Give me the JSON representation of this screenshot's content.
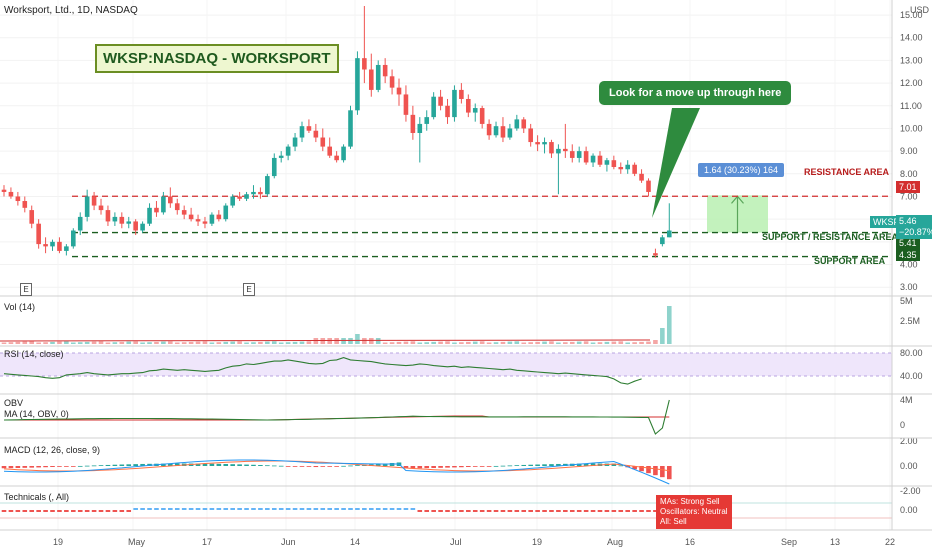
{
  "header": {
    "title": "Worksport, Ltd., 1D, NASDAQ",
    "banner": "WKSP:NASDAQ - WORKSPORT"
  },
  "annotations": {
    "callout": "Look for a move up through here",
    "measure": "1.64 (30.23%) 164",
    "resistance_label": "RESISTANCE AREA",
    "support_resistance_label": "SUPPORT / RESISTANCE AREA",
    "support_label": "SUPPORT AREA"
  },
  "price_tags": {
    "resistance": "7.01",
    "support_resistance": "5.41",
    "support": "4.35",
    "last_price": "5.46",
    "last_change": "−20.87%",
    "symbol": "WKSP",
    "currency": "USD"
  },
  "earnings_marks": [
    "E",
    "E"
  ],
  "panes": {
    "volume": "Vol (14)",
    "rsi": "RSI (14, close)",
    "obv": "OBV",
    "obv_ma": "MA (14, OBV, 0)",
    "macd": "MACD (12, 26, close, 9)",
    "technicals": "Technicals (, All)"
  },
  "technicals_summary": {
    "mas": "MAs:      Strong Sell",
    "oscillators": "Oscillators: Neutral",
    "all": "All:   Sell"
  },
  "colors": {
    "up": "#26a69a",
    "down": "#ef5350",
    "resistance": "#d32f2f",
    "support": "#1b5e20",
    "rsi_band": "#efe6fb",
    "callout": "#2e8b3e"
  },
  "chart_data": {
    "type": "candlestick",
    "title": "Worksport, Ltd., 1D, NASDAQ",
    "price_axis": {
      "ticks": [
        "3.00",
        "4.00",
        "5.00",
        "6.00",
        "7.00",
        "8.00",
        "9.00",
        "10.00",
        "11.00",
        "12.00",
        "13.00",
        "14.00",
        "15.00"
      ],
      "ylim": [
        2.7,
        15.4
      ]
    },
    "time_axis": [
      "19",
      "May",
      "17",
      "Jun",
      "14",
      "Jul",
      "19",
      "Aug",
      "16",
      "Sep",
      "13",
      "22"
    ],
    "candles_ohlc": [
      [
        7.3,
        7.5,
        7.0,
        7.2
      ],
      [
        7.2,
        7.4,
        6.9,
        7.0
      ],
      [
        7.0,
        7.2,
        6.6,
        6.8
      ],
      [
        6.8,
        7.0,
        6.3,
        6.5
      ],
      [
        6.4,
        6.6,
        5.6,
        5.8
      ],
      [
        5.8,
        6.0,
        4.7,
        4.9
      ],
      [
        4.9,
        5.2,
        4.5,
        4.8
      ],
      [
        4.8,
        5.1,
        4.6,
        5.0
      ],
      [
        5.0,
        5.2,
        4.5,
        4.6
      ],
      [
        4.6,
        4.9,
        4.4,
        4.8
      ],
      [
        4.8,
        5.6,
        4.7,
        5.5
      ],
      [
        5.5,
        6.3,
        5.3,
        6.1
      ],
      [
        6.1,
        7.3,
        5.9,
        7.0
      ],
      [
        7.0,
        7.2,
        6.4,
        6.6
      ],
      [
        6.6,
        6.9,
        6.2,
        6.4
      ],
      [
        6.4,
        6.6,
        5.7,
        5.9
      ],
      [
        5.9,
        6.3,
        5.7,
        6.1
      ],
      [
        6.1,
        6.3,
        5.6,
        5.8
      ],
      [
        5.8,
        6.1,
        5.6,
        5.9
      ],
      [
        5.9,
        6.0,
        5.3,
        5.5
      ],
      [
        5.5,
        5.9,
        5.4,
        5.8
      ],
      [
        5.8,
        6.7,
        5.7,
        6.5
      ],
      [
        6.5,
        6.8,
        6.1,
        6.3
      ],
      [
        6.3,
        7.2,
        6.2,
        7.0
      ],
      [
        7.0,
        7.4,
        6.5,
        6.7
      ],
      [
        6.7,
        6.9,
        6.2,
        6.4
      ],
      [
        6.4,
        6.6,
        6.0,
        6.2
      ],
      [
        6.2,
        6.5,
        5.9,
        6.0
      ],
      [
        6.0,
        6.2,
        5.7,
        5.9
      ],
      [
        5.9,
        6.1,
        5.6,
        5.8
      ],
      [
        5.8,
        6.3,
        5.7,
        6.2
      ],
      [
        6.2,
        6.4,
        5.9,
        6.0
      ],
      [
        6.0,
        6.7,
        5.9,
        6.6
      ],
      [
        6.6,
        7.1,
        6.5,
        7.0
      ],
      [
        7.0,
        7.2,
        6.8,
        6.9
      ],
      [
        6.9,
        7.2,
        6.8,
        7.1
      ],
      [
        7.1,
        7.5,
        6.9,
        7.2
      ],
      [
        7.2,
        7.4,
        6.9,
        7.1
      ],
      [
        7.1,
        8.0,
        7.0,
        7.9
      ],
      [
        7.9,
        8.9,
        7.8,
        8.7
      ],
      [
        8.7,
        9.0,
        8.5,
        8.8
      ],
      [
        8.8,
        9.3,
        8.6,
        9.2
      ],
      [
        9.2,
        9.8,
        9.0,
        9.6
      ],
      [
        9.6,
        10.3,
        9.4,
        10.1
      ],
      [
        10.1,
        10.4,
        9.8,
        9.9
      ],
      [
        9.9,
        10.2,
        9.4,
        9.6
      ],
      [
        9.6,
        10.0,
        9.0,
        9.2
      ],
      [
        9.2,
        9.6,
        8.7,
        8.8
      ],
      [
        8.8,
        9.0,
        8.5,
        8.6
      ],
      [
        8.6,
        9.3,
        8.5,
        9.2
      ],
      [
        9.2,
        11.0,
        9.1,
        10.8
      ],
      [
        10.8,
        13.4,
        10.6,
        13.1
      ],
      [
        13.1,
        15.4,
        12.0,
        12.6
      ],
      [
        12.6,
        13.3,
        11.4,
        11.7
      ],
      [
        11.7,
        13.0,
        11.6,
        12.8
      ],
      [
        12.8,
        13.1,
        12.0,
        12.3
      ],
      [
        12.3,
        12.6,
        11.5,
        11.8
      ],
      [
        11.8,
        12.2,
        11.0,
        11.5
      ],
      [
        11.5,
        11.9,
        10.3,
        10.6
      ],
      [
        10.6,
        11.0,
        9.5,
        9.8
      ],
      [
        9.8,
        10.5,
        8.5,
        10.2
      ],
      [
        10.2,
        10.8,
        9.9,
        10.5
      ],
      [
        10.5,
        11.6,
        10.4,
        11.4
      ],
      [
        11.4,
        11.7,
        10.8,
        11.0
      ],
      [
        11.0,
        11.3,
        10.2,
        10.5
      ],
      [
        10.5,
        11.9,
        10.3,
        11.7
      ],
      [
        11.7,
        12.0,
        11.1,
        11.3
      ],
      [
        11.3,
        11.5,
        10.5,
        10.7
      ],
      [
        10.7,
        11.1,
        10.3,
        10.9
      ],
      [
        10.9,
        11.0,
        10.0,
        10.2
      ],
      [
        10.2,
        10.4,
        9.5,
        9.7
      ],
      [
        9.7,
        10.3,
        9.6,
        10.1
      ],
      [
        10.1,
        10.5,
        9.4,
        9.6
      ],
      [
        9.6,
        10.2,
        9.5,
        10.0
      ],
      [
        10.0,
        10.6,
        9.9,
        10.4
      ],
      [
        10.4,
        10.5,
        9.8,
        10.0
      ],
      [
        10.0,
        10.2,
        9.2,
        9.4
      ],
      [
        9.4,
        9.7,
        9.0,
        9.3
      ],
      [
        9.3,
        9.6,
        8.9,
        9.4
      ],
      [
        9.4,
        9.5,
        8.7,
        8.9
      ],
      [
        8.9,
        9.3,
        7.1,
        9.1
      ],
      [
        9.1,
        10.2,
        8.7,
        9.0
      ],
      [
        9.0,
        9.3,
        8.5,
        8.7
      ],
      [
        8.7,
        9.2,
        8.5,
        9.0
      ],
      [
        9.0,
        9.2,
        8.4,
        8.5
      ],
      [
        8.5,
        8.9,
        8.3,
        8.8
      ],
      [
        8.8,
        9.0,
        8.3,
        8.4
      ],
      [
        8.4,
        8.7,
        8.1,
        8.6
      ],
      [
        8.6,
        8.8,
        8.2,
        8.3
      ],
      [
        8.3,
        8.5,
        8.0,
        8.2
      ],
      [
        8.2,
        8.6,
        8.0,
        8.4
      ],
      [
        8.4,
        8.5,
        7.9,
        8.0
      ],
      [
        8.0,
        8.2,
        7.6,
        7.7
      ],
      [
        7.7,
        7.8,
        7.0,
        7.2
      ],
      [
        4.5,
        4.7,
        4.3,
        4.4
      ],
      [
        4.9,
        5.3,
        4.8,
        5.2
      ],
      [
        5.2,
        6.7,
        5.2,
        5.5
      ]
    ],
    "levels": [
      {
        "name": "RESISTANCE AREA",
        "value": 7.01
      },
      {
        "name": "SUPPORT / RESISTANCE AREA",
        "value": 5.41
      },
      {
        "name": "SUPPORT AREA",
        "value": 4.35
      }
    ],
    "volume_axis": [
      "5M",
      "2.5M"
    ],
    "rsi_axis": [
      "80.00",
      "40.00"
    ],
    "rsi": [
      44,
      43,
      42,
      41,
      40,
      39,
      37,
      36,
      37,
      42,
      43,
      44,
      46,
      44,
      43,
      42,
      43,
      44,
      44,
      45,
      46,
      49,
      50,
      52,
      51,
      50,
      51,
      50,
      49,
      48,
      49,
      50,
      54,
      57,
      58,
      61,
      60,
      62,
      64,
      66,
      66,
      68,
      66,
      64,
      62,
      61,
      62,
      67,
      68,
      72,
      68,
      67,
      66,
      65,
      63,
      61,
      60,
      59,
      58,
      59,
      61,
      60,
      58,
      57,
      56,
      57,
      55,
      56,
      55,
      54,
      53,
      52,
      51,
      52,
      50,
      49,
      48,
      47,
      46,
      45,
      44,
      45,
      44,
      43,
      42,
      41,
      40,
      39,
      35,
      28,
      26,
      31,
      35
    ],
    "obv_axis": [
      "4M",
      "0"
    ],
    "macd_axis": [
      "2.00",
      "0.00",
      "-2.00"
    ],
    "technicals_axis": [
      "0.00"
    ]
  }
}
